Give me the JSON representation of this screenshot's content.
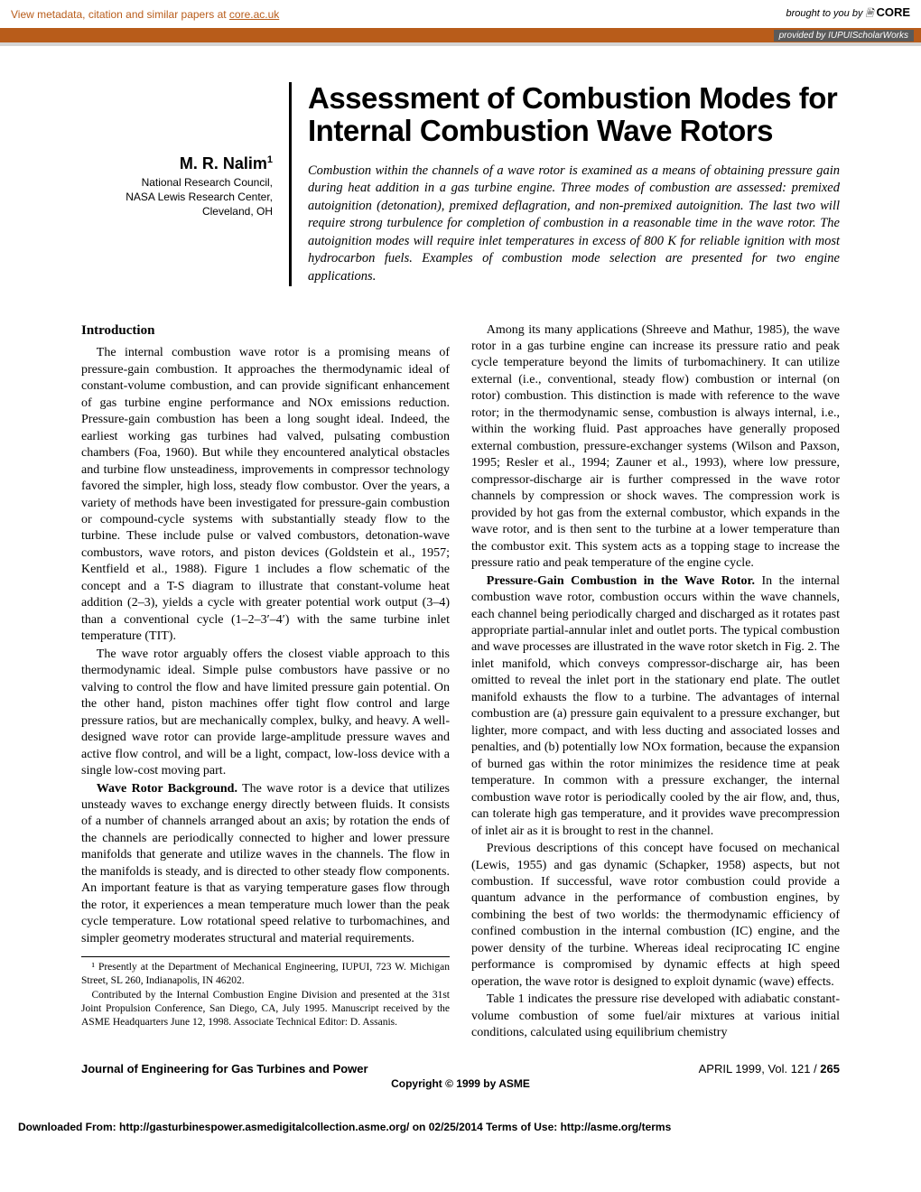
{
  "banner": {
    "left_prefix": "View metadata, citation and similar papers at ",
    "left_link": "core.ac.uk",
    "right_prefix": "brought to you by ",
    "right_brand": "CORE",
    "provided_by": "provided by IUPUIScholarWorks"
  },
  "author": {
    "name": "M. R. Nalim",
    "sup": "1",
    "affil1": "National Research Council,",
    "affil2": "NASA Lewis Research Center,",
    "affil3": "Cleveland, OH"
  },
  "title": "Assessment of Combustion Modes for Internal Combustion Wave Rotors",
  "abstract": "Combustion within the channels of a wave rotor is examined as a means of obtaining pressure gain during heat addition in a gas turbine engine. Three modes of combustion are assessed: premixed autoignition (detonation), premixed deflagration, and non-premixed autoignition. The last two will require strong turbulence for completion of combustion in a reasonable time in the wave rotor. The autoignition modes will require inlet temperatures in excess of 800 K for reliable ignition with most hydrocarbon fuels. Examples of combustion mode selection are presented for two engine applications.",
  "intro_head": "Introduction",
  "p1": "The internal combustion wave rotor is a promising means of pressure-gain combustion. It approaches the thermodynamic ideal of constant-volume combustion, and can provide significant enhancement of gas turbine engine performance and NOx emissions reduction. Pressure-gain combustion has been a long sought ideal. Indeed, the earliest working gas turbines had valved, pulsating combustion chambers (Foa, 1960). But while they encountered analytical obstacles and turbine flow unsteadiness, improvements in compressor technology favored the simpler, high loss, steady flow combustor. Over the years, a variety of methods have been investigated for pressure-gain combustion or compound-cycle systems with substantially steady flow to the turbine. These include pulse or valved combustors, detonation-wave combustors, wave rotors, and piston devices (Goldstein et al., 1957; Kentfield et al., 1988). Figure 1 includes a flow schematic of the concept and a T-S diagram to illustrate that constant-volume heat addition (2–3), yields a cycle with greater potential work output (3–4) than a conventional cycle (1–2–3′–4′) with the same turbine inlet temperature (TIT).",
  "p2": "The wave rotor arguably offers the closest viable approach to this thermodynamic ideal. Simple pulse combustors have passive or no valving to control the flow and have limited pressure gain potential. On the other hand, piston machines offer tight flow control and large pressure ratios, but are mechanically complex, bulky, and heavy. A well-designed wave rotor can provide large-amplitude pressure waves and active flow control, and will be a light, compact, low-loss device with a single low-cost moving part.",
  "p3_head": "Wave Rotor Background.",
  "p3": "The wave rotor is a device that utilizes unsteady waves to exchange energy directly between fluids. It consists of a number of channels arranged about an axis; by rotation the ends of the channels are periodically connected to higher and lower pressure manifolds that generate and utilize waves in the channels. The flow in the manifolds is steady, and is directed to other steady flow components. An important feature is that as varying temperature gases flow through the rotor, it experiences a mean temperature much lower than the peak cycle temperature. Low rotational speed relative to turbomachines, and simpler geometry moderates structural and material requirements.",
  "p4": "Among its many applications (Shreeve and Mathur, 1985), the wave rotor in a gas turbine engine can increase its pressure ratio and peak cycle temperature beyond the limits of turbomachinery. It can utilize external (i.e., conventional, steady flow) combustion or internal (on rotor) combustion. This distinction is made with reference to the wave rotor; in the thermodynamic sense, combustion is always internal, i.e., within the working fluid. Past approaches have generally proposed external combustion, pressure-exchanger systems (Wilson and Paxson, 1995; Resler et al., 1994; Zauner et al., 1993), where low pressure, compressor-discharge air is further compressed in the wave rotor channels by compression or shock waves. The compression work is provided by hot gas from the external combustor, which expands in the wave rotor, and is then sent to the turbine at a lower temperature than the combustor exit. This system acts as a topping stage to increase the pressure ratio and peak temperature of the engine cycle.",
  "p5_head": "Pressure-Gain Combustion in the Wave Rotor.",
  "p5": "In the internal combustion wave rotor, combustion occurs within the wave channels, each channel being periodically charged and discharged as it rotates past appropriate partial-annular inlet and outlet ports. The typical combustion and wave processes are illustrated in the wave rotor sketch in Fig. 2. The inlet manifold, which conveys compressor-discharge air, has been omitted to reveal the inlet port in the stationary end plate. The outlet manifold exhausts the flow to a turbine. The advantages of internal combustion are (a) pressure gain equivalent to a pressure exchanger, but lighter, more compact, and with less ducting and associated losses and penalties, and (b) potentially low NOx formation, because the expansion of burned gas within the rotor minimizes the residence time at peak temperature. In common with a pressure exchanger, the internal combustion wave rotor is periodically cooled by the air flow, and, thus, can tolerate high gas temperature, and it provides wave precompression of inlet air as it is brought to rest in the channel.",
  "p6": "Previous descriptions of this concept have focused on mechanical (Lewis, 1955) and gas dynamic (Schapker, 1958) aspects, but not combustion. If successful, wave rotor combustion could provide a quantum advance in the performance of combustion engines, by combining the best of two worlds: the thermodynamic efficiency of confined combustion in the internal combustion (IC) engine, and the power density of the turbine. Whereas ideal reciprocating IC engine performance is compromised by dynamic effects at high speed operation, the wave rotor is designed to exploit dynamic (wave) effects.",
  "p7": "Table 1 indicates the pressure rise developed with adiabatic constant-volume combustion of some fuel/air mixtures at various initial conditions, calculated using equilibrium chemistry",
  "fn1": "¹ Presently at the Department of Mechanical Engineering, IUPUI, 723 W. Michigan Street, SL 260, Indianapolis, IN 46202.",
  "fn2": "Contributed by the Internal Combustion Engine Division and presented at the 31st Joint Propulsion Conference, San Diego, CA, July 1995. Manuscript received by the ASME Headquarters June 12, 1998. Associate Technical Editor: D. Assanis.",
  "footer": {
    "journal": "Journal of Engineering for Gas Turbines and Power",
    "issue": "APRIL 1999, Vol. 121 / ",
    "page": "265",
    "copyright": "Copyright © 1999 by ASME"
  },
  "download": "Downloaded From: http://gasturbinespower.asmedigitalcollection.asme.org/ on 02/25/2014 Terms of Use: http://asme.org/terms"
}
